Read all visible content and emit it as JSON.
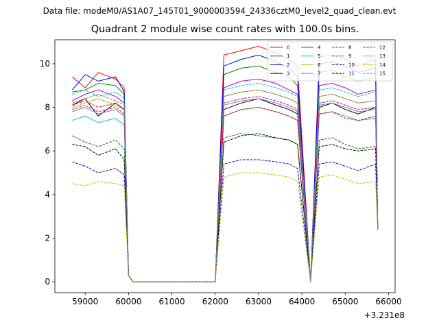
{
  "chart_data": {
    "type": "line",
    "suptitle": "Data file: modeM0/AS1A07_145T01_9000003594_24336cztM0_level2_quad_clean.evt",
    "title": "Quadrant 2 module wise count rates with 100.0s bins.",
    "xlabel": "",
    "ylabel": "",
    "x_offset_label": "+3.231e8",
    "xlim": [
      58300,
      66150
    ],
    "ylim": [
      -0.5,
      11.1
    ],
    "xticks": [
      59000,
      60000,
      61000,
      62000,
      63000,
      64000,
      65000,
      66000
    ],
    "yticks": [
      0,
      2,
      4,
      6,
      8,
      10
    ],
    "grid": false,
    "legend_placement": "top-right",
    "legend_ncols": 4,
    "series": [
      {
        "name": "0",
        "color": "#ff0000",
        "dash": "solid",
        "x": [
          58700,
          59000,
          59300,
          59700,
          59900,
          60000,
          60100,
          62000,
          62200,
          62600,
          63000,
          63400,
          63700,
          63900,
          64200,
          64400,
          64700,
          65000,
          65300,
          65700,
          65750
        ],
        "y": [
          9.4,
          8.9,
          9.6,
          9.3,
          8.9,
          0.3,
          0,
          0,
          10.4,
          10.6,
          10.8,
          10.5,
          10.2,
          9.9,
          0,
          10.3,
          10.4,
          10.2,
          9.9,
          10.2,
          2.5
        ]
      },
      {
        "name": "1",
        "color": "#008000",
        "dash": "solid",
        "x": [
          58700,
          59000,
          59300,
          59700,
          59900,
          60000,
          60100,
          62000,
          62200,
          62600,
          63000,
          63400,
          63700,
          63900,
          64200,
          64400,
          64700,
          65000,
          65300,
          65700,
          65750
        ],
        "y": [
          8.7,
          8.8,
          9.1,
          9.0,
          8.6,
          0.3,
          0,
          0,
          9.5,
          9.8,
          9.9,
          9.6,
          9.4,
          9.0,
          0,
          9.6,
          9.7,
          9.4,
          9.2,
          9.4,
          2.5
        ]
      },
      {
        "name": "2",
        "color": "#0000ff",
        "dash": "solid",
        "x": [
          58700,
          59000,
          59300,
          59700,
          59900,
          60000,
          60100,
          62000,
          62200,
          62600,
          63000,
          63400,
          63700,
          63900,
          64200,
          64400,
          64700,
          65000,
          65300,
          65700,
          65750
        ],
        "y": [
          8.8,
          9.5,
          9.2,
          9.4,
          8.7,
          0.3,
          0,
          0,
          9.9,
          10.2,
          10.4,
          10.1,
          9.8,
          9.4,
          0,
          10.0,
          10.1,
          9.9,
          9.6,
          9.8,
          2.5
        ]
      },
      {
        "name": "3",
        "color": "#000000",
        "dash": "solid",
        "x": [
          58700,
          59000,
          59300,
          59700,
          59900,
          60000,
          60100,
          62000,
          62200,
          62600,
          63000,
          63400,
          63700,
          63900,
          64200,
          64400,
          64700,
          65000,
          65300,
          65700,
          65750
        ],
        "y": [
          8.1,
          8.4,
          7.6,
          8.2,
          7.9,
          0.3,
          0,
          0,
          7.9,
          8.2,
          8.4,
          8.1,
          7.9,
          7.7,
          0,
          8.0,
          8.2,
          7.9,
          7.7,
          8.0,
          2.4
        ]
      },
      {
        "name": "4",
        "color": "#bf00bf",
        "dash": "solid",
        "x": [
          58700,
          59000,
          59300,
          59700,
          59900,
          60000,
          60100,
          62000,
          62200,
          62600,
          63000,
          63400,
          63700,
          63900,
          64200,
          64400,
          64700,
          65000,
          65300,
          65700,
          65750
        ],
        "y": [
          8.3,
          8.6,
          8.8,
          8.5,
          8.2,
          0.3,
          0,
          0,
          8.9,
          9.2,
          9.3,
          9.1,
          8.8,
          8.6,
          0,
          9.0,
          9.1,
          8.9,
          8.6,
          8.8,
          2.5
        ]
      },
      {
        "name": "5",
        "color": "#00bfbf",
        "dash": "solid",
        "x": [
          58700,
          59000,
          59300,
          59700,
          59900,
          60000,
          60100,
          62000,
          62200,
          62600,
          63000,
          63400,
          63700,
          63900,
          64200,
          64400,
          64700,
          65000,
          65300,
          65700,
          65750
        ],
        "y": [
          7.4,
          7.6,
          7.3,
          7.5,
          7.2,
          0.3,
          0,
          0,
          7.6,
          7.9,
          8.0,
          7.8,
          7.6,
          7.4,
          0,
          7.7,
          7.8,
          7.6,
          7.4,
          7.5,
          2.4
        ]
      },
      {
        "name": "6",
        "color": "#bfbf00",
        "dash": "solid",
        "x": [
          58700,
          59000,
          59300,
          59700,
          59900,
          60000,
          60100,
          62000,
          62200,
          62600,
          63000,
          63400,
          63700,
          63900,
          64200,
          64400,
          64700,
          65000,
          65300,
          65700,
          65750
        ],
        "y": [
          8.0,
          8.2,
          8.4,
          8.1,
          7.9,
          0.3,
          0,
          0,
          8.5,
          8.7,
          8.8,
          8.6,
          8.4,
          8.2,
          0,
          8.5,
          8.6,
          8.4,
          8.2,
          8.3,
          2.4
        ]
      },
      {
        "name": "7",
        "color": "#808080",
        "dash": "solid",
        "x": [
          58700,
          59000,
          59300,
          59700,
          59900,
          60000,
          60100,
          62000,
          62200,
          62600,
          63000,
          63400,
          63700,
          63900,
          64200,
          64400,
          64700,
          65000,
          65300,
          65700,
          65750
        ],
        "y": [
          7.8,
          8.0,
          7.7,
          7.9,
          7.6,
          0.3,
          0,
          0,
          8.1,
          8.3,
          8.4,
          8.2,
          8.0,
          7.8,
          0,
          8.1,
          8.2,
          8.0,
          7.8,
          7.9,
          2.4
        ]
      },
      {
        "name": "8",
        "color": "#ff0000",
        "dash": "dashed",
        "x": [
          58700,
          59000,
          59300,
          59700,
          59900,
          60000,
          60100,
          62000,
          62200,
          62600,
          63000,
          63400,
          63700,
          63900,
          64200,
          64400,
          64700,
          65000,
          65300,
          65700,
          65750
        ],
        "y": [
          8.1,
          8.3,
          8.0,
          8.2,
          7.9,
          0.3,
          0,
          0,
          7.6,
          7.9,
          8.0,
          7.8,
          7.6,
          7.4,
          0,
          7.7,
          7.8,
          7.5,
          7.4,
          7.6,
          2.4
        ]
      },
      {
        "name": "9",
        "color": "#008000",
        "dash": "dashed",
        "x": [
          58700,
          59000,
          59300,
          59700,
          59900,
          60000,
          60100,
          62000,
          62200,
          62600,
          63000,
          63400,
          63700,
          63900,
          64200,
          64400,
          64700,
          65000,
          65300,
          65700,
          65750
        ],
        "y": [
          6.7,
          6.4,
          6.2,
          6.5,
          6.1,
          0.3,
          0,
          0,
          6.6,
          6.8,
          6.7,
          6.6,
          6.5,
          6.3,
          0,
          6.5,
          6.6,
          6.3,
          6.1,
          6.2,
          2.4
        ]
      },
      {
        "name": "10",
        "color": "#0000ff",
        "dash": "dashed",
        "x": [
          58700,
          59000,
          59300,
          59700,
          59900,
          60000,
          60100,
          62000,
          62200,
          62600,
          63000,
          63400,
          63700,
          63900,
          64200,
          64400,
          64700,
          65000,
          65300,
          65700,
          65750
        ],
        "y": [
          5.5,
          5.3,
          5.0,
          5.2,
          4.9,
          0.3,
          0,
          0,
          5.4,
          5.6,
          5.6,
          5.5,
          5.4,
          5.2,
          0,
          5.4,
          5.5,
          5.3,
          5.1,
          5.4,
          2.4
        ]
      },
      {
        "name": "11",
        "color": "#000000",
        "dash": "dashed",
        "x": [
          58700,
          59000,
          59300,
          59700,
          59900,
          60000,
          60100,
          62000,
          62200,
          62600,
          63000,
          63400,
          63700,
          63900,
          64200,
          64400,
          64700,
          65000,
          65300,
          65700,
          65750
        ],
        "y": [
          6.3,
          6.2,
          5.8,
          6.1,
          5.6,
          0.3,
          0,
          0,
          6.4,
          6.7,
          6.8,
          6.6,
          6.5,
          6.3,
          0,
          6.2,
          6.3,
          6.1,
          6.0,
          6.1,
          2.4
        ]
      },
      {
        "name": "12",
        "color": "#bf00bf",
        "dash": "dashed",
        "x": [
          58700,
          59000,
          59300,
          59700,
          59900,
          60000,
          60100,
          62000,
          62200,
          62600,
          63000,
          63400,
          63700,
          63900,
          64200,
          64400,
          64700,
          65000,
          65300,
          65700,
          65750
        ],
        "y": [
          7.9,
          8.1,
          7.8,
          8.0,
          7.7,
          0.3,
          0,
          0,
          8.2,
          8.4,
          8.5,
          8.3,
          8.1,
          7.9,
          0,
          8.2,
          8.3,
          8.1,
          7.9,
          8.0,
          2.4
        ]
      },
      {
        "name": "13",
        "color": "#00bfbf",
        "dash": "dashed",
        "x": [
          58700,
          59000,
          59300,
          59700,
          59900,
          60000,
          60100,
          62000,
          62200,
          62600,
          63000,
          63400,
          63700,
          63900,
          64200,
          64400,
          64700,
          65000,
          65300,
          65700,
          65750
        ],
        "y": [
          8.6,
          8.8,
          8.5,
          8.7,
          8.4,
          0.3,
          0,
          0,
          8.8,
          9.0,
          9.1,
          8.9,
          8.7,
          8.5,
          0,
          8.8,
          8.9,
          8.7,
          8.5,
          8.7,
          2.5
        ]
      },
      {
        "name": "14",
        "color": "#bfbf00",
        "dash": "dashed",
        "x": [
          58700,
          59000,
          59300,
          59700,
          59900,
          60000,
          60100,
          62000,
          62200,
          62600,
          63000,
          63400,
          63700,
          63900,
          64200,
          64400,
          64700,
          65000,
          65300,
          65700,
          65750
        ],
        "y": [
          4.5,
          4.4,
          4.6,
          4.5,
          4.4,
          0.3,
          0,
          0,
          4.8,
          5.0,
          5.0,
          4.9,
          4.8,
          4.6,
          0,
          4.8,
          4.9,
          4.7,
          4.5,
          4.6,
          2.4
        ]
      },
      {
        "name": "15",
        "color": "#808080",
        "dash": "dashed",
        "x": [
          58700,
          59000,
          59300,
          59700,
          59900,
          60000,
          60100,
          62000,
          62200,
          62600,
          63000,
          63400,
          63700,
          63900,
          64200,
          64400,
          64700,
          65000,
          65300,
          65700,
          65750
        ],
        "y": [
          8.2,
          8.4,
          8.6,
          8.3,
          8.1,
          0.3,
          0,
          0,
          8.5,
          8.7,
          8.8,
          8.6,
          8.4,
          8.2,
          0,
          8.5,
          8.6,
          8.4,
          8.2,
          8.3,
          2.4
        ]
      }
    ]
  }
}
